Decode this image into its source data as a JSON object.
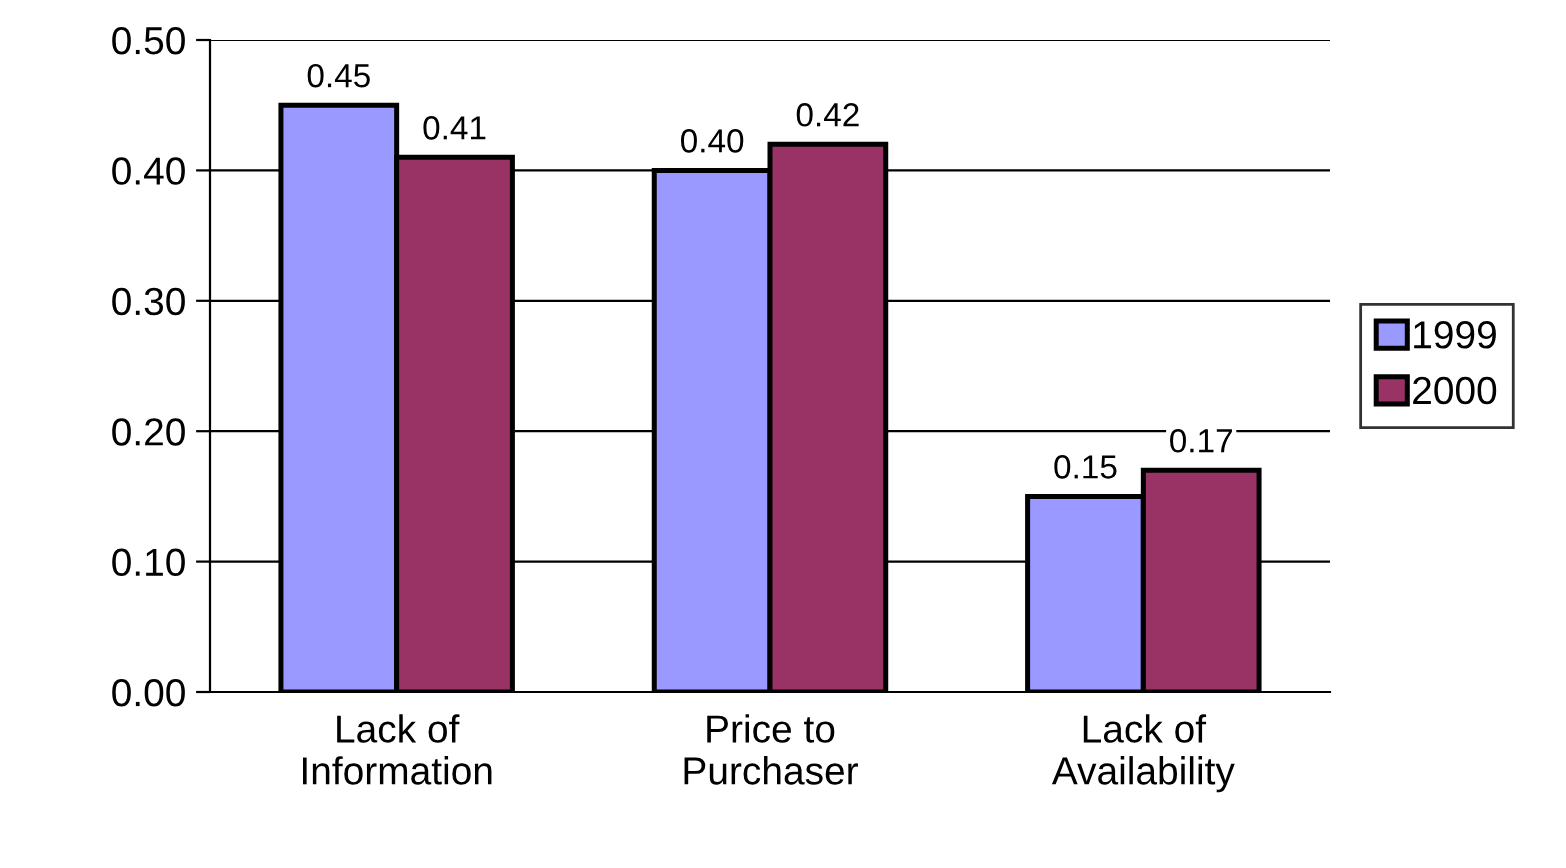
{
  "chart_data": {
    "type": "bar",
    "categories": [
      "Lack of\nInformation",
      "Price to\nPurchaser",
      "Lack of\nAvailability"
    ],
    "series": [
      {
        "name": "1999",
        "color": "#9999ff",
        "values": [
          0.45,
          0.4,
          0.15
        ],
        "value_labels": [
          "0.45",
          "0.40",
          "0.15"
        ]
      },
      {
        "name": "2000",
        "color": "#993366",
        "values": [
          0.41,
          0.42,
          0.17
        ],
        "value_labels": [
          "0.41",
          "0.42",
          "0.17"
        ]
      }
    ],
    "ylim": [
      0,
      0.5
    ],
    "yticks": [
      {
        "value": 0,
        "label": "0.00"
      },
      {
        "value": 0.1,
        "label": "0.10"
      },
      {
        "value": 0.2,
        "label": "0.20"
      },
      {
        "value": 0.3,
        "label": "0.30"
      },
      {
        "value": 0.4,
        "label": "0.40"
      },
      {
        "value": 0.5,
        "label": "0.50"
      }
    ],
    "grid": "y",
    "legend": "right"
  }
}
